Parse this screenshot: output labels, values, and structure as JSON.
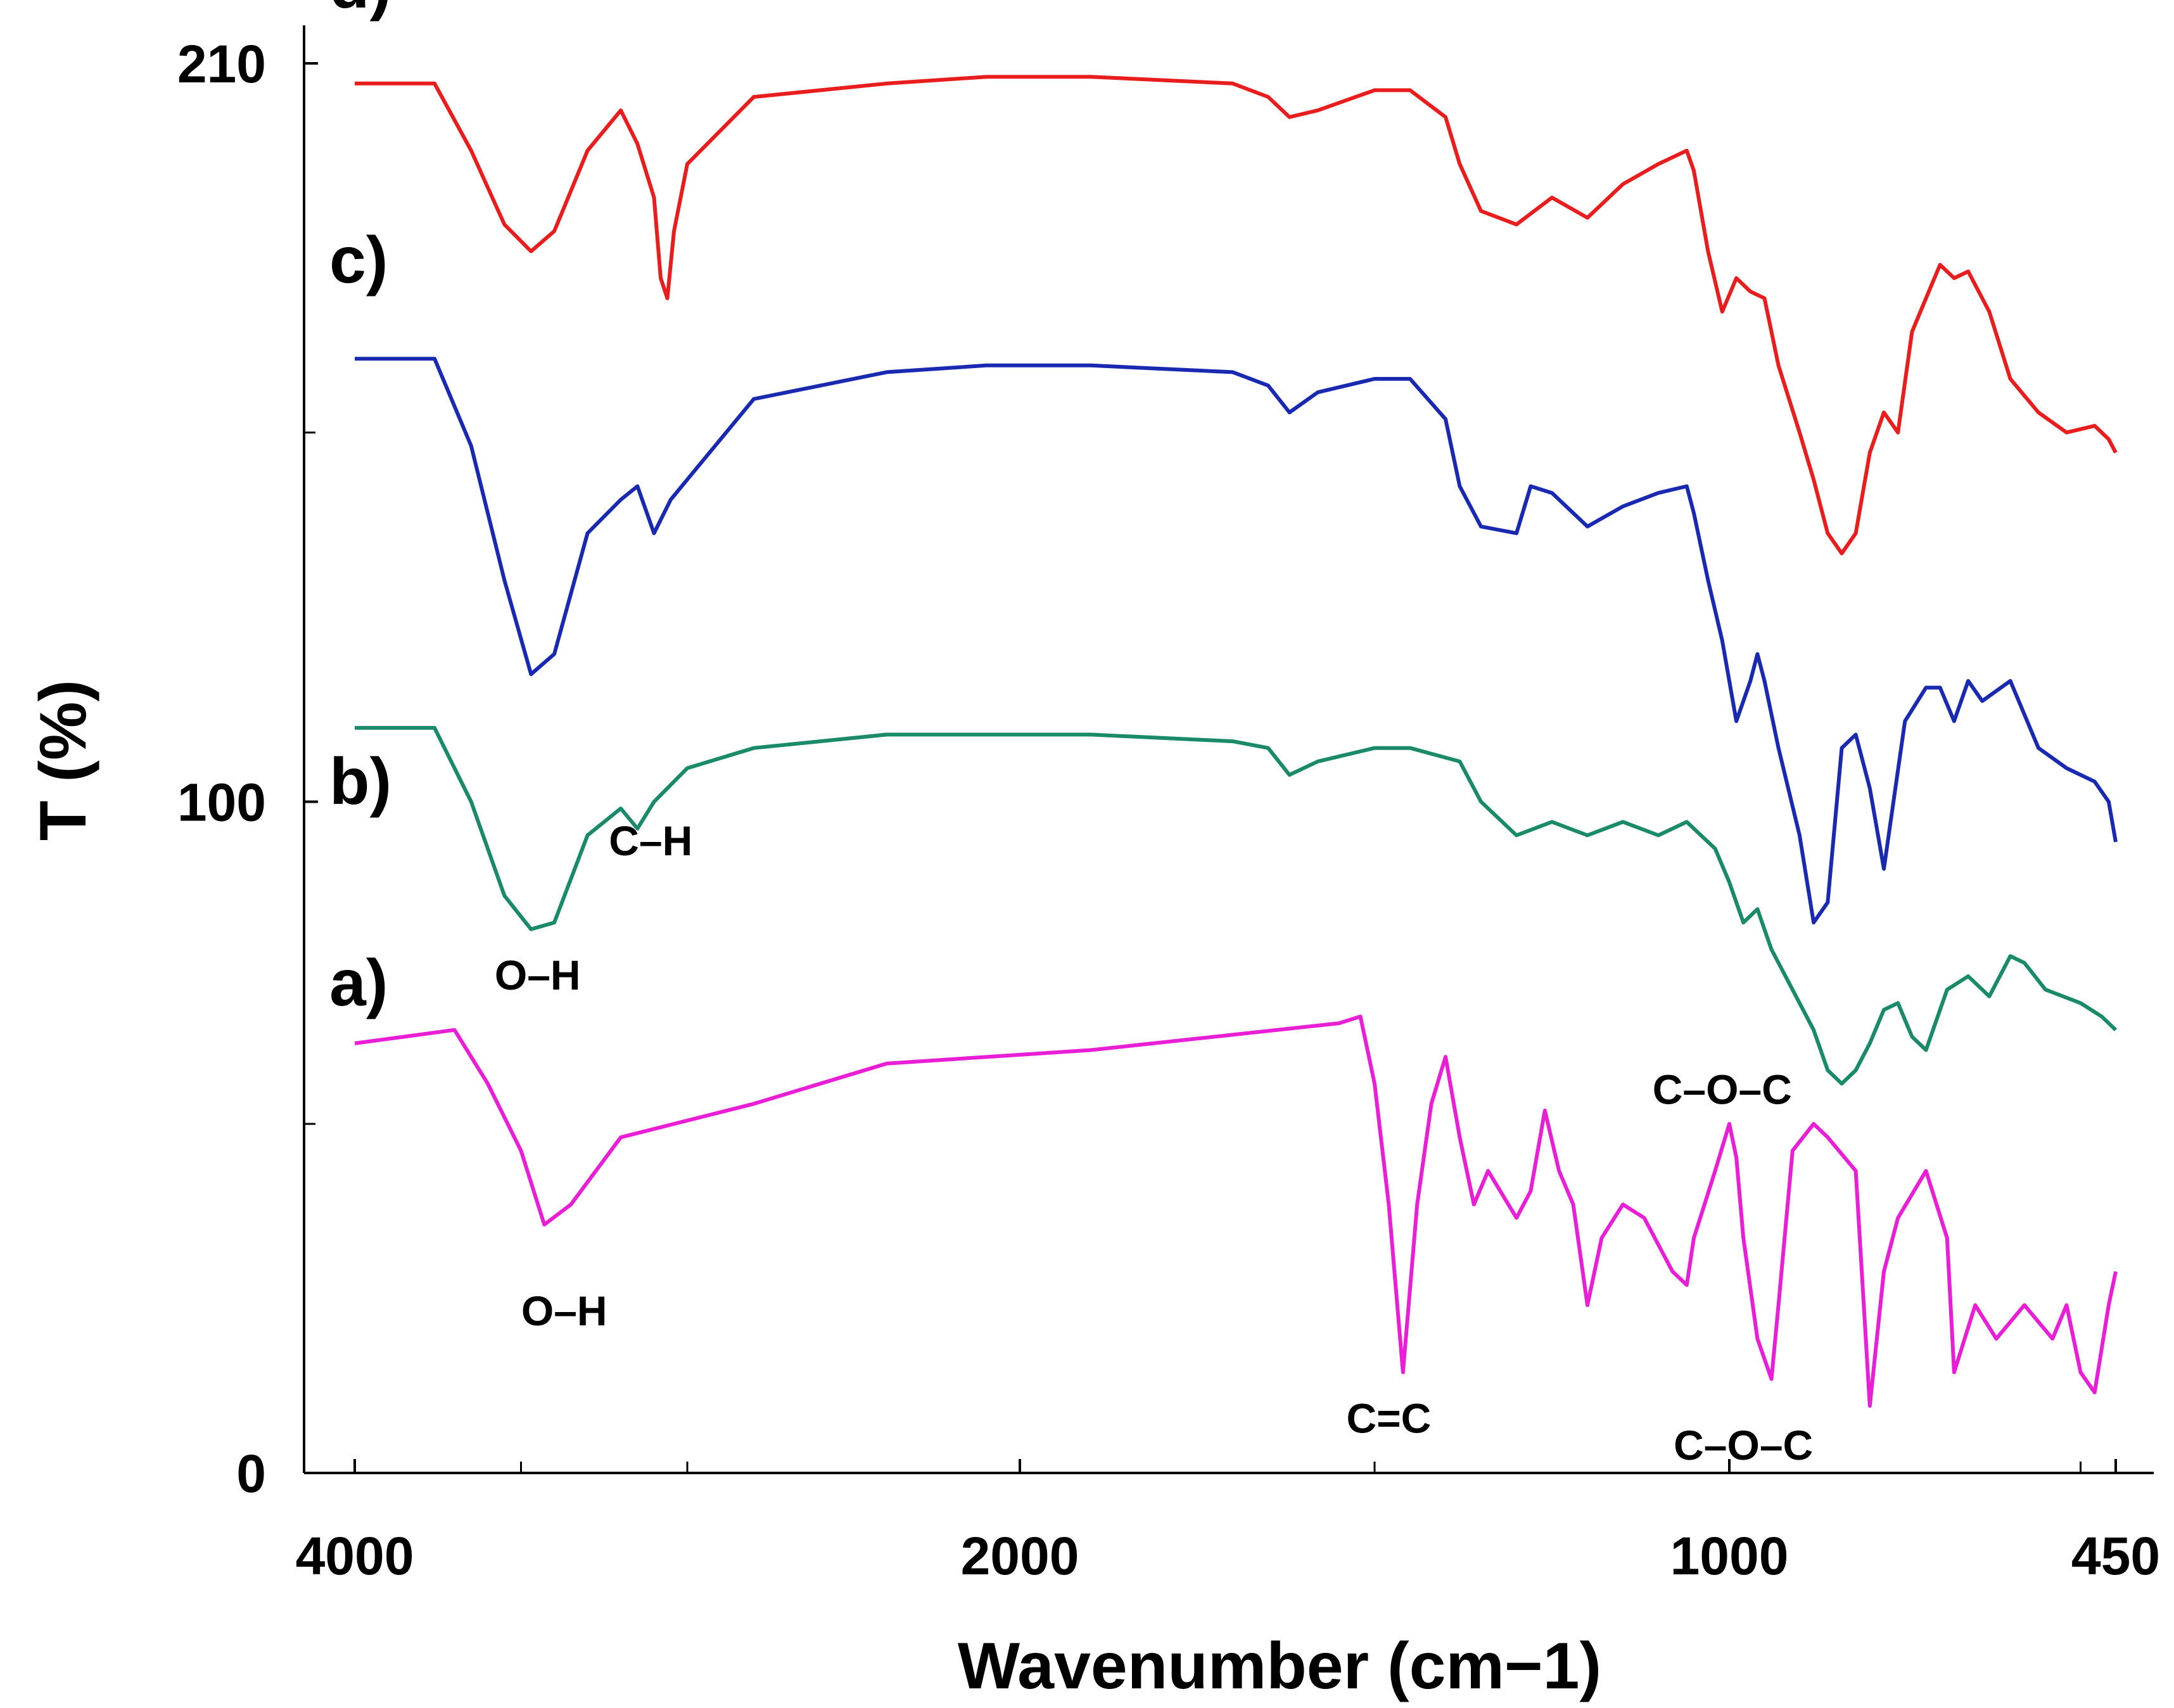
{
  "chart_data": {
    "type": "line",
    "title": "",
    "xlabel": "Wavenumber (cm−1)",
    "ylabel": "T (%)",
    "x_reversed": true,
    "xlim": [
      4000,
      450
    ],
    "ylim": [
      0,
      210
    ],
    "x_ticks": [
      {
        "value": 4000,
        "label": "4000"
      },
      {
        "value": 2000,
        "label": "2000"
      },
      {
        "value": 1000,
        "label": "1000"
      },
      {
        "value": 450,
        "label": "450"
      }
    ],
    "x_minor_ticks": [
      3500,
      3000,
      1500,
      500
    ],
    "y_ticks": [
      {
        "value": 0,
        "label": "0"
      },
      {
        "value": 100,
        "label": "100"
      },
      {
        "value": 210,
        "label": "210"
      }
    ],
    "y_minor_ticks": [
      52,
      155
    ],
    "legend": "none",
    "series": [
      {
        "name": "a)",
        "color": "#e91fd6",
        "points": [
          [
            4000,
            64
          ],
          [
            3700,
            66
          ],
          [
            3600,
            58
          ],
          [
            3500,
            48
          ],
          [
            3430,
            37
          ],
          [
            3350,
            40
          ],
          [
            3200,
            50
          ],
          [
            2800,
            55
          ],
          [
            2400,
            61
          ],
          [
            1900,
            63
          ],
          [
            1550,
            67
          ],
          [
            1520,
            68
          ],
          [
            1500,
            58
          ],
          [
            1480,
            40
          ],
          [
            1460,
            15
          ],
          [
            1440,
            40
          ],
          [
            1420,
            55
          ],
          [
            1400,
            62
          ],
          [
            1380,
            50
          ],
          [
            1360,
            40
          ],
          [
            1340,
            45
          ],
          [
            1300,
            38
          ],
          [
            1280,
            42
          ],
          [
            1260,
            54
          ],
          [
            1240,
            45
          ],
          [
            1220,
            40
          ],
          [
            1200,
            25
          ],
          [
            1180,
            35
          ],
          [
            1150,
            40
          ],
          [
            1120,
            38
          ],
          [
            1080,
            30
          ],
          [
            1060,
            28
          ],
          [
            1050,
            35
          ],
          [
            1020,
            45
          ],
          [
            1000,
            52
          ],
          [
            990,
            47
          ],
          [
            980,
            35
          ],
          [
            960,
            20
          ],
          [
            940,
            14
          ],
          [
            930,
            25
          ],
          [
            910,
            48
          ],
          [
            880,
            52
          ],
          [
            860,
            50
          ],
          [
            820,
            45
          ],
          [
            800,
            10
          ],
          [
            780,
            30
          ],
          [
            760,
            38
          ],
          [
            720,
            45
          ],
          [
            690,
            35
          ],
          [
            680,
            15
          ],
          [
            650,
            25
          ],
          [
            620,
            20
          ],
          [
            580,
            25
          ],
          [
            540,
            20
          ],
          [
            520,
            25
          ],
          [
            500,
            15
          ],
          [
            480,
            12
          ],
          [
            460,
            25
          ],
          [
            450,
            30
          ]
        ]
      },
      {
        "name": "b)",
        "color": "#1a8a6a",
        "points": [
          [
            4000,
            111
          ],
          [
            3760,
            111
          ],
          [
            3650,
            100
          ],
          [
            3550,
            86
          ],
          [
            3470,
            81
          ],
          [
            3400,
            82
          ],
          [
            3300,
            95
          ],
          [
            3200,
            99
          ],
          [
            3150,
            96
          ],
          [
            3100,
            100
          ],
          [
            3000,
            105
          ],
          [
            2800,
            108
          ],
          [
            2400,
            110
          ],
          [
            2100,
            110
          ],
          [
            1900,
            110
          ],
          [
            1700,
            109
          ],
          [
            1650,
            108
          ],
          [
            1620,
            104
          ],
          [
            1580,
            106
          ],
          [
            1500,
            108
          ],
          [
            1450,
            108
          ],
          [
            1380,
            106
          ],
          [
            1350,
            100
          ],
          [
            1300,
            95
          ],
          [
            1250,
            97
          ],
          [
            1200,
            95
          ],
          [
            1150,
            97
          ],
          [
            1100,
            95
          ],
          [
            1060,
            97
          ],
          [
            1050,
            96
          ],
          [
            1020,
            93
          ],
          [
            1000,
            88
          ],
          [
            980,
            82
          ],
          [
            960,
            84
          ],
          [
            940,
            78
          ],
          [
            900,
            70
          ],
          [
            880,
            66
          ],
          [
            860,
            60
          ],
          [
            840,
            58
          ],
          [
            820,
            60
          ],
          [
            800,
            64
          ],
          [
            780,
            69
          ],
          [
            760,
            70
          ],
          [
            740,
            65
          ],
          [
            720,
            63
          ],
          [
            690,
            72
          ],
          [
            660,
            74
          ],
          [
            630,
            71
          ],
          [
            600,
            77
          ],
          [
            580,
            76
          ],
          [
            550,
            72
          ],
          [
            500,
            70
          ],
          [
            470,
            68
          ],
          [
            450,
            66
          ]
        ]
      },
      {
        "name": "c)",
        "color": "#1a2ab0",
        "points": [
          [
            4000,
            166
          ],
          [
            3760,
            166
          ],
          [
            3650,
            153
          ],
          [
            3550,
            133
          ],
          [
            3470,
            119
          ],
          [
            3400,
            122
          ],
          [
            3300,
            140
          ],
          [
            3200,
            145
          ],
          [
            3150,
            147
          ],
          [
            3100,
            140
          ],
          [
            3050,
            145
          ],
          [
            3000,
            148
          ],
          [
            2800,
            160
          ],
          [
            2400,
            164
          ],
          [
            2100,
            165
          ],
          [
            1900,
            165
          ],
          [
            1700,
            164
          ],
          [
            1650,
            162
          ],
          [
            1620,
            158
          ],
          [
            1580,
            161
          ],
          [
            1500,
            163
          ],
          [
            1450,
            163
          ],
          [
            1400,
            157
          ],
          [
            1380,
            147
          ],
          [
            1350,
            141
          ],
          [
            1300,
            140
          ],
          [
            1280,
            147
          ],
          [
            1250,
            146
          ],
          [
            1200,
            141
          ],
          [
            1150,
            144
          ],
          [
            1100,
            146
          ],
          [
            1060,
            147
          ],
          [
            1050,
            143
          ],
          [
            1030,
            133
          ],
          [
            1010,
            124
          ],
          [
            990,
            112
          ],
          [
            970,
            118
          ],
          [
            960,
            122
          ],
          [
            950,
            118
          ],
          [
            930,
            108
          ],
          [
            900,
            95
          ],
          [
            880,
            82
          ],
          [
            860,
            85
          ],
          [
            840,
            108
          ],
          [
            820,
            110
          ],
          [
            800,
            102
          ],
          [
            780,
            90
          ],
          [
            750,
            112
          ],
          [
            720,
            117
          ],
          [
            700,
            117
          ],
          [
            680,
            112
          ],
          [
            660,
            118
          ],
          [
            640,
            115
          ],
          [
            600,
            118
          ],
          [
            560,
            108
          ],
          [
            520,
            105
          ],
          [
            480,
            103
          ],
          [
            460,
            100
          ],
          [
            450,
            94
          ]
        ]
      },
      {
        "name": "d)",
        "color": "#e81e1e",
        "points": [
          [
            4000,
            207
          ],
          [
            3760,
            207
          ],
          [
            3650,
            197
          ],
          [
            3550,
            186
          ],
          [
            3470,
            182
          ],
          [
            3400,
            185
          ],
          [
            3300,
            197
          ],
          [
            3200,
            203
          ],
          [
            3150,
            198
          ],
          [
            3100,
            190
          ],
          [
            3080,
            178
          ],
          [
            3060,
            175
          ],
          [
            3040,
            185
          ],
          [
            3000,
            195
          ],
          [
            2800,
            205
          ],
          [
            2400,
            207
          ],
          [
            2100,
            208
          ],
          [
            1900,
            208
          ],
          [
            1700,
            207
          ],
          [
            1650,
            205
          ],
          [
            1620,
            202
          ],
          [
            1580,
            203
          ],
          [
            1500,
            206
          ],
          [
            1450,
            206
          ],
          [
            1400,
            202
          ],
          [
            1380,
            195
          ],
          [
            1350,
            188
          ],
          [
            1300,
            186
          ],
          [
            1250,
            190
          ],
          [
            1200,
            187
          ],
          [
            1150,
            192
          ],
          [
            1100,
            195
          ],
          [
            1060,
            197
          ],
          [
            1050,
            194
          ],
          [
            1030,
            182
          ],
          [
            1010,
            173
          ],
          [
            990,
            178
          ],
          [
            970,
            176
          ],
          [
            950,
            175
          ],
          [
            930,
            165
          ],
          [
            900,
            155
          ],
          [
            880,
            148
          ],
          [
            860,
            140
          ],
          [
            840,
            137
          ],
          [
            820,
            140
          ],
          [
            800,
            152
          ],
          [
            780,
            158
          ],
          [
            760,
            155
          ],
          [
            740,
            170
          ],
          [
            720,
            175
          ],
          [
            700,
            180
          ],
          [
            680,
            178
          ],
          [
            660,
            179
          ],
          [
            630,
            173
          ],
          [
            600,
            163
          ],
          [
            560,
            158
          ],
          [
            520,
            155
          ],
          [
            480,
            156
          ],
          [
            460,
            154
          ],
          [
            450,
            152
          ]
        ]
      }
    ],
    "curve_labels": [
      {
        "series": "a)",
        "text": "a)"
      },
      {
        "series": "b)",
        "text": "b)"
      },
      {
        "series": "c)",
        "text": "c)"
      },
      {
        "series": "d)",
        "text": "d)"
      }
    ],
    "annotations": [
      {
        "text": "O–H",
        "x": 3450,
        "y": 72
      },
      {
        "text": "C–H",
        "x": 3110,
        "y": 92
      },
      {
        "text": "O–H",
        "x": 3370,
        "y": 22
      },
      {
        "text": "C=C",
        "x": 1480,
        "y": 6
      },
      {
        "text": "C–O–C",
        "x": 1010,
        "y": 55
      },
      {
        "text": "C–O–C",
        "x": 980,
        "y": 2
      }
    ]
  }
}
